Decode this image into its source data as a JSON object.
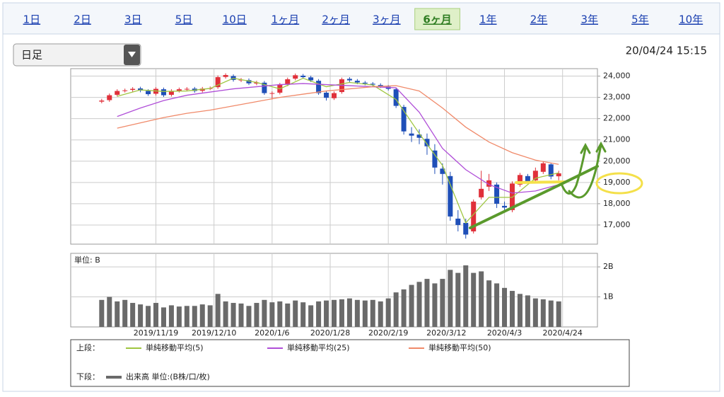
{
  "tabs": [
    "1日",
    "2日",
    "3日",
    "5日",
    "10日",
    "1ヶ月",
    "2ヶ月",
    "3ヶ月",
    "6ヶ月",
    "1年",
    "2年",
    "3年",
    "5年",
    "10年"
  ],
  "active_tab": 8,
  "dropdown": "日足",
  "timestamp": "20/04/24 15:15",
  "chart_data": [
    {
      "type": "candlestick",
      "legend_prefix": "上段：",
      "up_color": "#e0303a",
      "down_color": "#1f4fb8",
      "x": [
        0,
        2,
        4,
        6,
        8,
        10,
        12,
        14,
        16,
        18,
        20,
        22,
        24,
        26,
        28,
        30,
        32,
        34,
        36,
        38,
        40,
        42,
        44,
        46,
        48,
        50,
        52,
        54,
        56,
        58,
        60,
        62,
        64,
        66,
        68,
        70,
        72,
        74,
        76,
        78,
        80,
        82,
        84,
        86,
        88,
        90,
        92,
        94,
        96,
        98,
        100,
        102,
        104,
        106,
        108,
        110,
        112,
        114,
        116,
        118
      ],
      "open": [
        22800,
        22870,
        23120,
        23310,
        23350,
        23420,
        23300,
        23170,
        23380,
        23120,
        23310,
        23390,
        23410,
        23310,
        23420,
        23480,
        23960,
        24000,
        23800,
        23810,
        23650,
        23690,
        23180,
        23220,
        23610,
        23880,
        24020,
        23940,
        23780,
        23220,
        22960,
        23250,
        23870,
        23780,
        23690,
        23640,
        23580,
        23500,
        23380,
        22550,
        21300,
        21250,
        21050,
        20500,
        19650,
        19300,
        17300,
        17100,
        16700,
        18300,
        18800,
        18900,
        17900,
        17700,
        18900,
        19300,
        19100,
        19500,
        19850,
        19290
      ],
      "high": [
        22930,
        23180,
        23380,
        23410,
        23480,
        23500,
        23380,
        23480,
        23460,
        23380,
        23460,
        23480,
        23490,
        23490,
        23510,
        24030,
        24130,
        24080,
        23910,
        23890,
        23780,
        23770,
        23280,
        23680,
        23930,
        24120,
        24100,
        24020,
        23860,
        23300,
        23280,
        23930,
        23950,
        23860,
        23770,
        23720,
        23660,
        23580,
        23460,
        22650,
        21600,
        21500,
        21300,
        20800,
        19900,
        19500,
        17700,
        17300,
        18200,
        19550,
        19400,
        19000,
        18100,
        19050,
        19450,
        19400,
        19700,
        20000,
        19900,
        19550
      ],
      "low": [
        22720,
        22790,
        23040,
        23230,
        23270,
        23240,
        23070,
        23090,
        23020,
        23040,
        23230,
        23310,
        23220,
        23230,
        23340,
        23400,
        23880,
        23740,
        23720,
        23580,
        23570,
        23120,
        22900,
        23140,
        23530,
        23800,
        23870,
        23720,
        23120,
        22850,
        22880,
        23170,
        23720,
        23620,
        23570,
        23520,
        23440,
        23320,
        22500,
        21250,
        20900,
        20800,
        20300,
        19400,
        18900,
        17200,
        16700,
        16360,
        16600,
        18200,
        18600,
        17800,
        17600,
        17600,
        18800,
        18950,
        19000,
        19400,
        19150,
        19100
      ],
      "close": [
        22850,
        23100,
        23300,
        23330,
        23400,
        23320,
        23150,
        23400,
        23100,
        23300,
        23380,
        23400,
        23300,
        23410,
        23430,
        23950,
        24050,
        23820,
        23830,
        23660,
        23700,
        23200,
        23200,
        23600,
        23850,
        24040,
        23950,
        23800,
        23200,
        22980,
        23200,
        23850,
        23800,
        23700,
        23650,
        23600,
        23520,
        23400,
        22600,
        21400,
        21200,
        21100,
        20700,
        19700,
        19400,
        17400,
        17000,
        16550,
        18100,
        18700,
        19100,
        18000,
        17820,
        18950,
        19350,
        19040,
        19550,
        19900,
        19280,
        19430
      ],
      "series": [
        {
          "name": "単純移動平均(5)",
          "color": "#9fc640",
          "x": [
            4,
            10,
            16,
            22,
            28,
            34,
            40,
            46,
            52,
            58,
            64,
            70,
            76,
            82,
            88,
            94,
            100,
            106,
            112,
            118
          ],
          "values": [
            23050,
            23350,
            23280,
            23300,
            23420,
            23900,
            23700,
            23400,
            23900,
            23500,
            23700,
            23580,
            22900,
            21300,
            19800,
            17100,
            18300,
            18300,
            19200,
            19450
          ]
        },
        {
          "name": "単純移動平均(25)",
          "color": "#b04fd8",
          "x": [
            4,
            10,
            16,
            22,
            28,
            34,
            40,
            46,
            52,
            58,
            64,
            70,
            76,
            82,
            88,
            94,
            100,
            106,
            112,
            118
          ],
          "values": [
            22100,
            22500,
            22850,
            23100,
            23250,
            23400,
            23500,
            23600,
            23650,
            23600,
            23550,
            23500,
            23450,
            22300,
            20600,
            19600,
            18900,
            18500,
            18600,
            18900
          ]
        },
        {
          "name": "単純移動平均(50)",
          "color": "#f08a6a",
          "x": [
            4,
            10,
            16,
            22,
            28,
            34,
            40,
            46,
            52,
            58,
            64,
            70,
            76,
            82,
            88,
            94,
            100,
            106,
            112,
            118
          ],
          "values": [
            21550,
            21800,
            22050,
            22250,
            22400,
            22600,
            22800,
            23000,
            23150,
            23300,
            23400,
            23500,
            23550,
            23300,
            22500,
            21600,
            20900,
            20400,
            20050,
            19850
          ]
        }
      ],
      "xlim": [
        -8,
        128
      ],
      "xticks": [
        14,
        29,
        44,
        59,
        74,
        89,
        104,
        119
      ],
      "ylim": [
        16100,
        24350
      ],
      "yticks": [
        {
          "value": 17000,
          "label": "17,000"
        },
        {
          "value": 18000,
          "label": "18,000"
        },
        {
          "value": 19000,
          "label": "19,000"
        },
        {
          "value": 20000,
          "label": "20,000"
        },
        {
          "value": 21000,
          "label": "21,000"
        },
        {
          "value": 22000,
          "label": "22,000"
        },
        {
          "value": 23000,
          "label": "23,000"
        },
        {
          "value": 24000,
          "label": "24,000"
        }
      ],
      "grid": true
    },
    {
      "type": "bar",
      "title": "単位: B",
      "legend_prefix": "下段：",
      "legend_label": "出来高 単位:(B株/口/枚)",
      "color": "#6a6a6a",
      "x": [
        0,
        2,
        4,
        6,
        8,
        10,
        12,
        14,
        16,
        18,
        20,
        22,
        24,
        26,
        28,
        30,
        32,
        34,
        36,
        38,
        40,
        42,
        44,
        46,
        48,
        50,
        52,
        54,
        56,
        58,
        60,
        62,
        64,
        66,
        68,
        70,
        72,
        74,
        76,
        78,
        80,
        82,
        84,
        86,
        88,
        90,
        92,
        94,
        96,
        98,
        100,
        102,
        104,
        106,
        108,
        110,
        112,
        114,
        116,
        118
      ],
      "values": [
        0.9,
        1.0,
        0.85,
        0.9,
        0.8,
        0.75,
        0.7,
        0.8,
        0.65,
        0.72,
        0.68,
        0.7,
        0.7,
        0.75,
        0.72,
        1.1,
        0.85,
        0.8,
        0.78,
        0.7,
        0.8,
        0.9,
        0.82,
        0.85,
        0.78,
        0.88,
        0.82,
        0.72,
        0.85,
        0.88,
        0.9,
        0.92,
        0.95,
        0.9,
        0.88,
        0.9,
        0.85,
        0.95,
        1.15,
        1.25,
        1.4,
        1.5,
        1.6,
        1.45,
        1.6,
        1.9,
        1.8,
        2.05,
        1.8,
        1.85,
        1.55,
        1.45,
        1.3,
        1.2,
        1.1,
        1.05,
        0.95,
        0.92,
        0.88,
        0.85
      ],
      "xlim": [
        -8,
        128
      ],
      "xticks": [
        {
          "value": 14,
          "label": "2019/11/19"
        },
        {
          "value": 29,
          "label": "2019/12/10"
        },
        {
          "value": 44,
          "label": "2020/1/6"
        },
        {
          "value": 59,
          "label": "2020/1/28"
        },
        {
          "value": 74,
          "label": "2020/2/19"
        },
        {
          "value": 89,
          "label": "2020/3/12"
        },
        {
          "value": 104,
          "label": "2020/4/3"
        },
        {
          "value": 119,
          "label": "2020/4/24"
        }
      ],
      "ylim": [
        0,
        2.45
      ],
      "yticks": [
        {
          "value": 1,
          "label": "1B"
        },
        {
          "value": 2,
          "label": "2B"
        }
      ],
      "grid": true
    }
  ]
}
